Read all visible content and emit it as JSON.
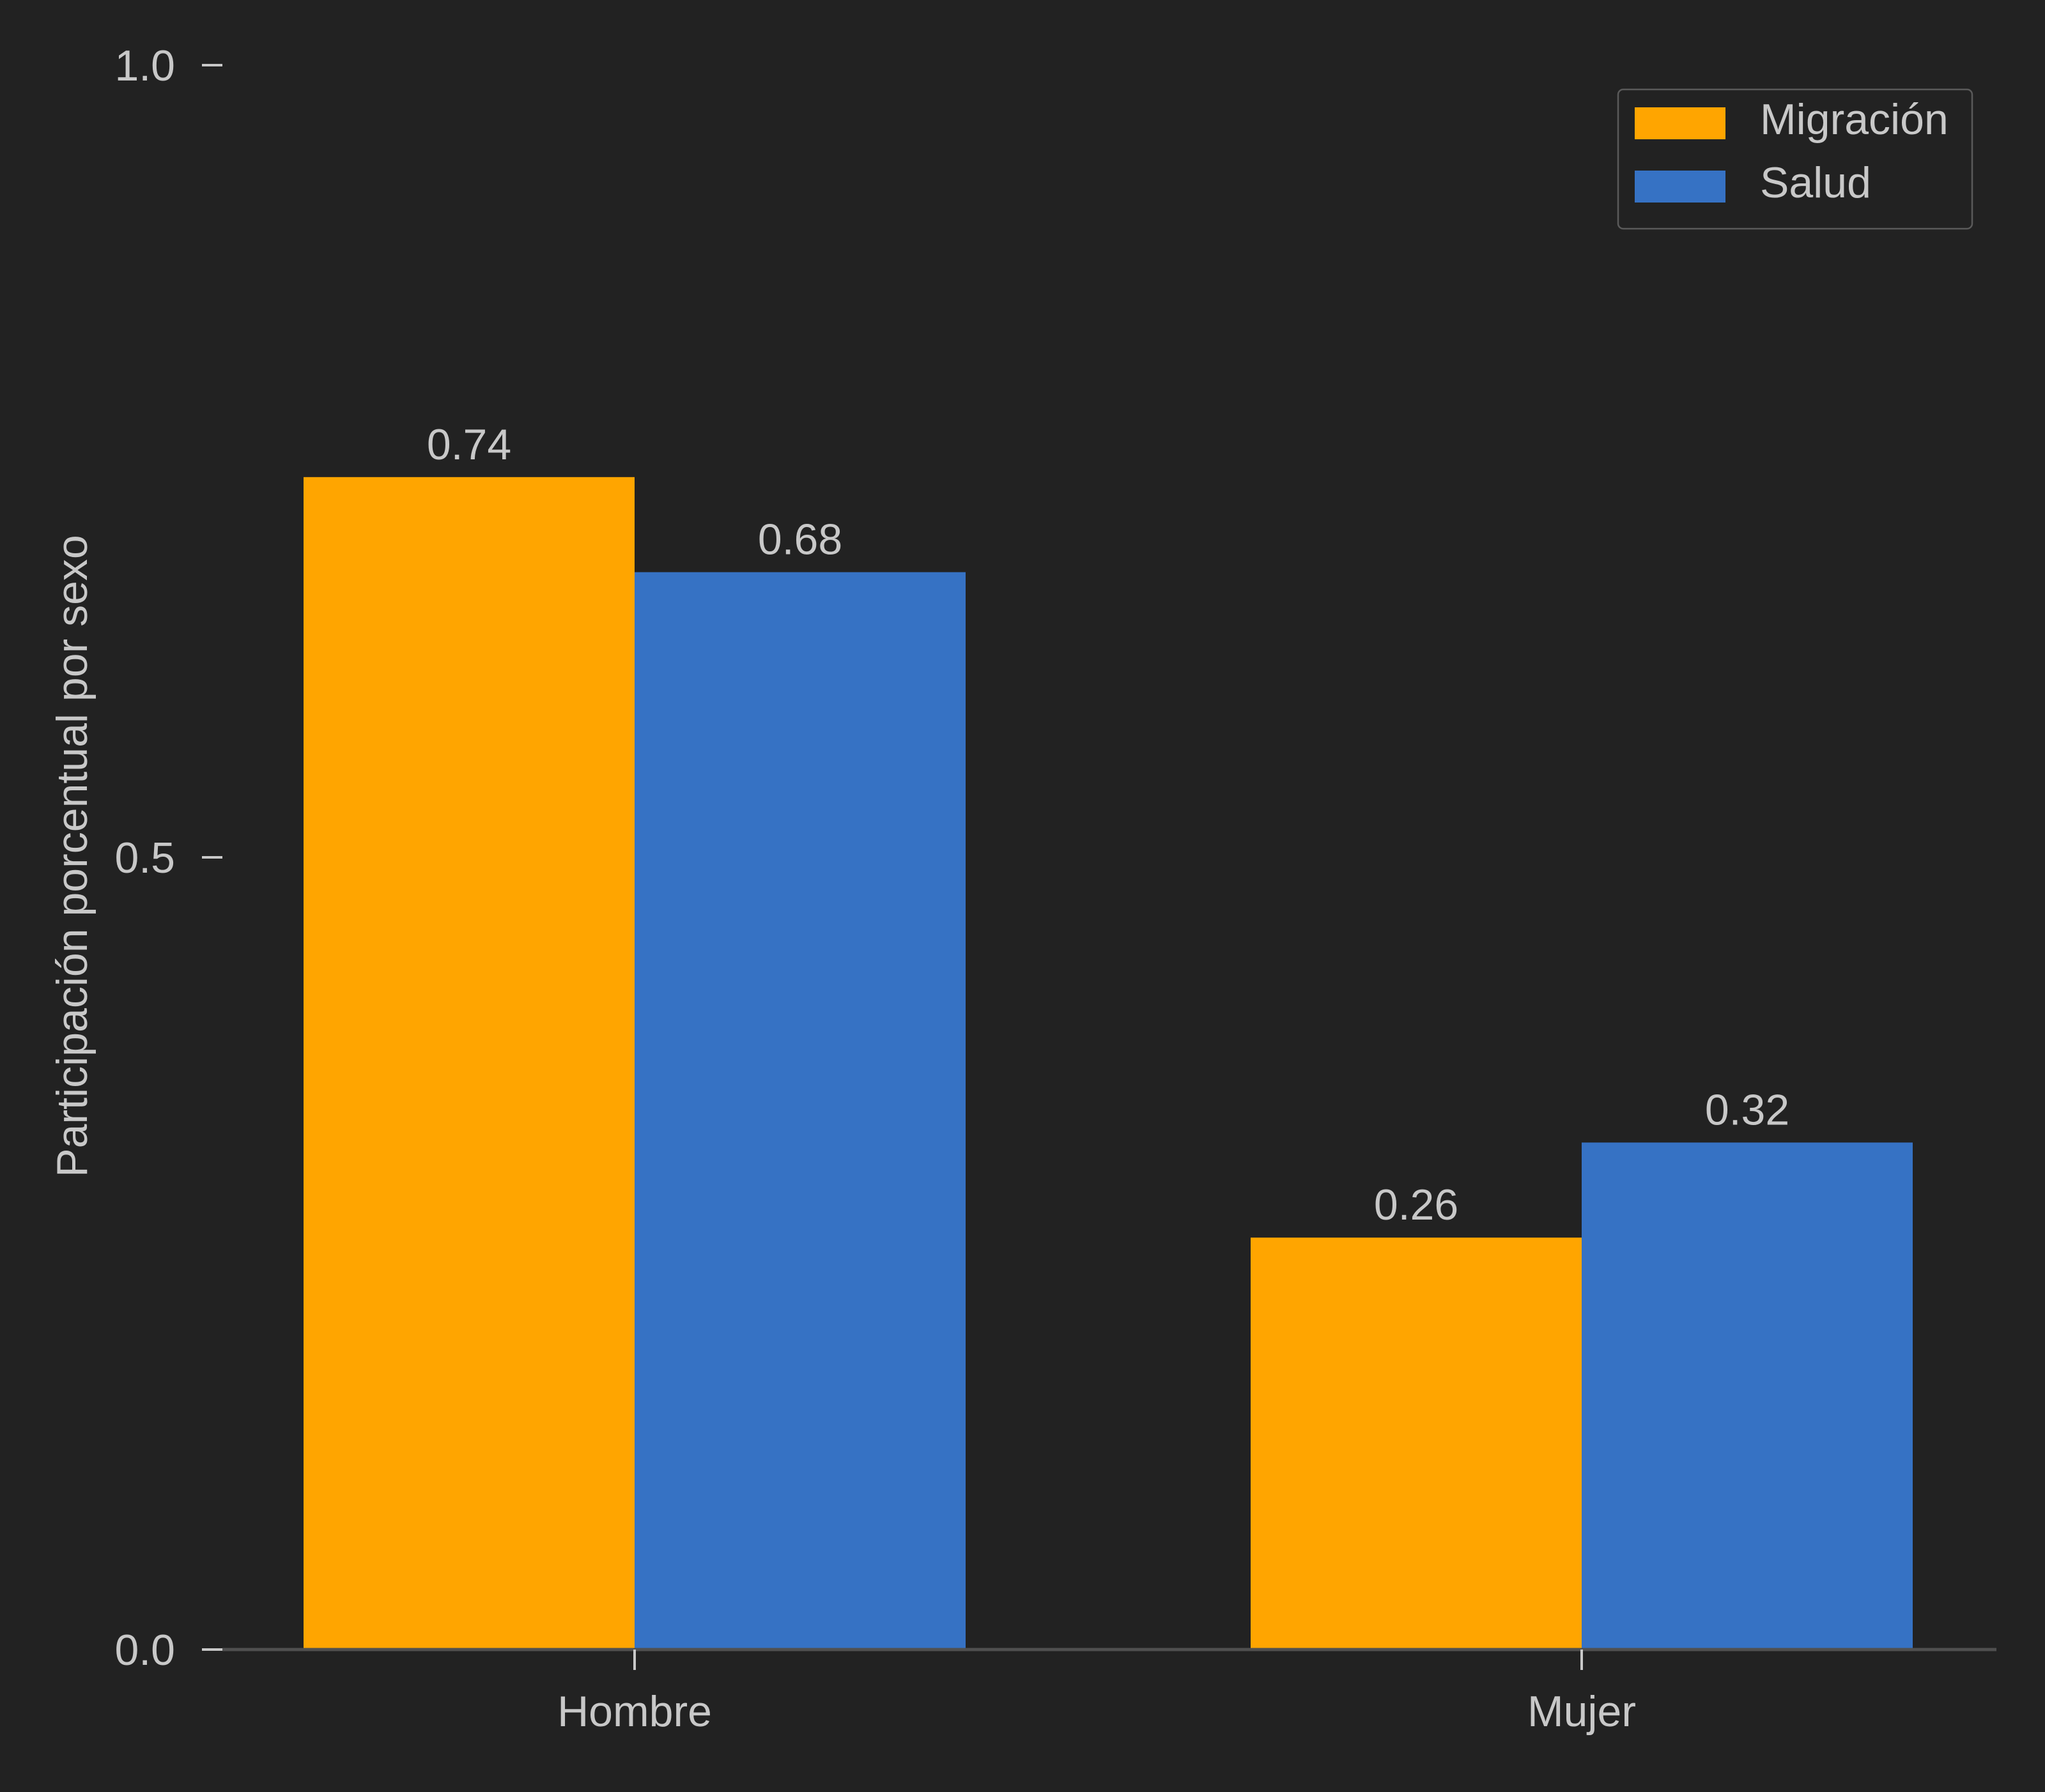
{
  "chart_data": {
    "type": "bar",
    "categories": [
      "Hombre",
      "Mujer"
    ],
    "series": [
      {
        "name": "Migración",
        "values": [
          0.74,
          0.26
        ],
        "color": "#FFA500"
      },
      {
        "name": "Salud",
        "values": [
          0.68,
          0.32
        ],
        "color": "#3672C4"
      }
    ],
    "value_labels": [
      [
        "0.74",
        "0.26"
      ],
      [
        "0.68",
        "0.32"
      ]
    ],
    "ylabel": "Participación porcentual por sexo",
    "xlabel": "",
    "ylim": [
      0.0,
      1.0
    ],
    "yticks": [
      0.0,
      0.5,
      1.0
    ],
    "ytick_labels": [
      "0.0",
      "0.5",
      "1.0"
    ],
    "grid": false,
    "legend_position": "top-right",
    "colors": {
      "background": "#222222",
      "text": "#C8C8C8",
      "axis": "#505050",
      "tick": "#C8C8C8"
    }
  }
}
